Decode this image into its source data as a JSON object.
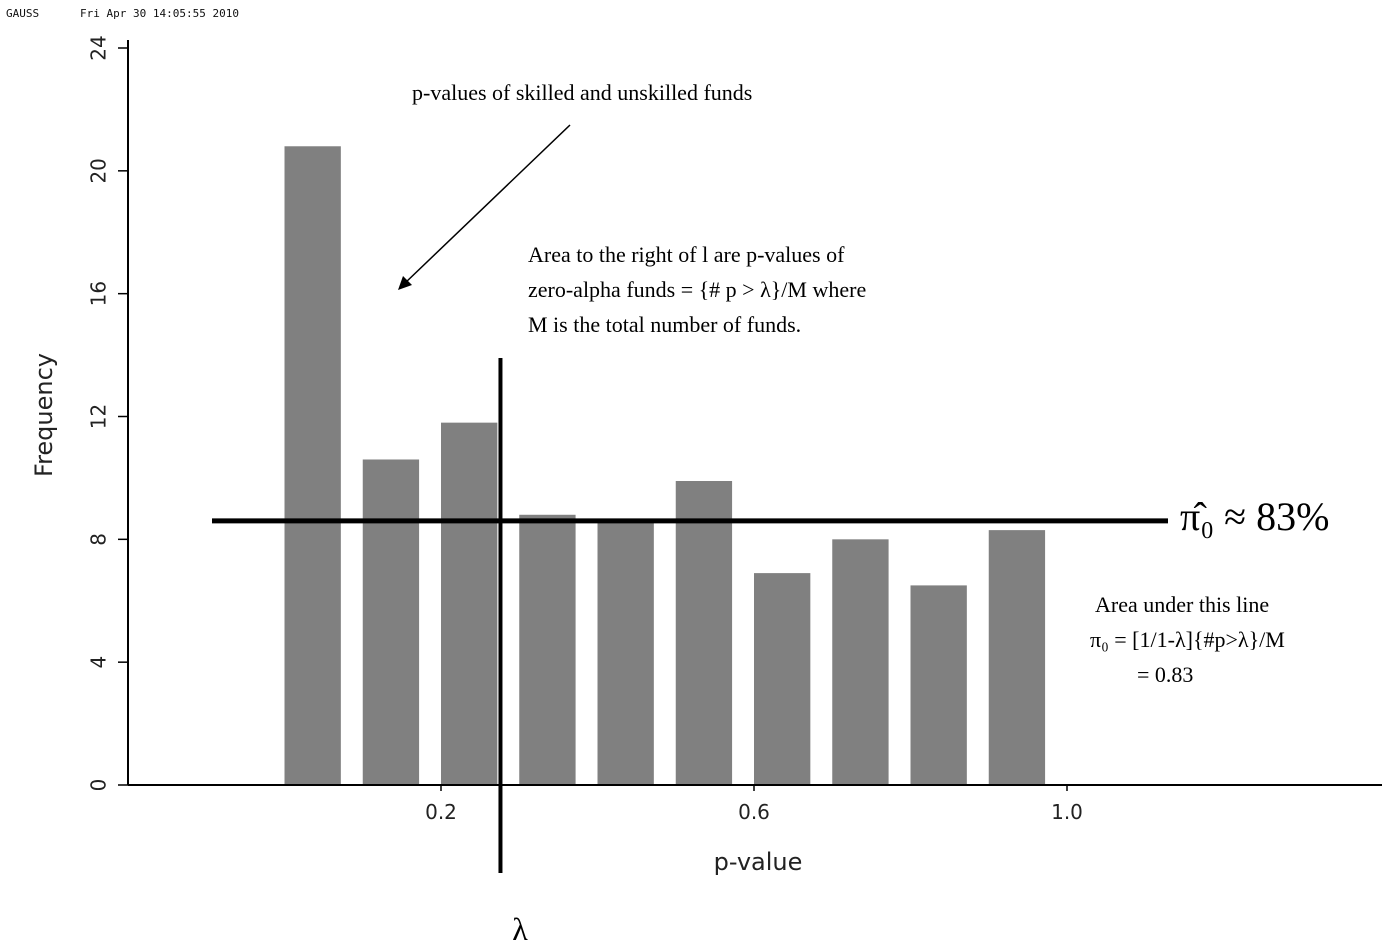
{
  "chart_data": {
    "type": "histogram",
    "header": {
      "program": "GAUSS",
      "timestamp": "Fri Apr 30 14:05:55 2010"
    },
    "x_label": "p-value",
    "y_label": "Frequency",
    "bins": [
      0,
      0.1,
      0.2,
      0.3,
      0.4,
      0.5,
      0.6,
      0.7,
      0.8,
      0.9,
      1.0
    ],
    "values": [
      20.8,
      10.6,
      11.8,
      8.8,
      8.6,
      9.9,
      6.9,
      8.0,
      6.5,
      8.3
    ],
    "color": "#808080",
    "xlim": [
      -0.2,
      1.4
    ],
    "ylim": [
      0,
      24
    ],
    "xticks": [
      0.2,
      0.6,
      {
        "value": 1,
        "label": "1.0"
      }
    ],
    "yticks": [
      0,
      4,
      8,
      12,
      16,
      20,
      24
    ],
    "reference_lines": {
      "horizontal": 8.6,
      "vertical": 0.276
    },
    "annotations": {
      "arrow_note": "p-values of skilled and unskilled funds",
      "right_of_lambda": [
        "Area to the right of l are p-values of",
        "zero-alpha funds = {# p > λ}/M where",
        "M is the total number of funds."
      ],
      "pi_estimate": "π̂₀ ≈ 83%",
      "area_note": [
        "Area under this line",
        "π₀ = [1/1-λ]{#p>λ}/M",
        "= 0.83"
      ],
      "lambda": "λ"
    }
  }
}
